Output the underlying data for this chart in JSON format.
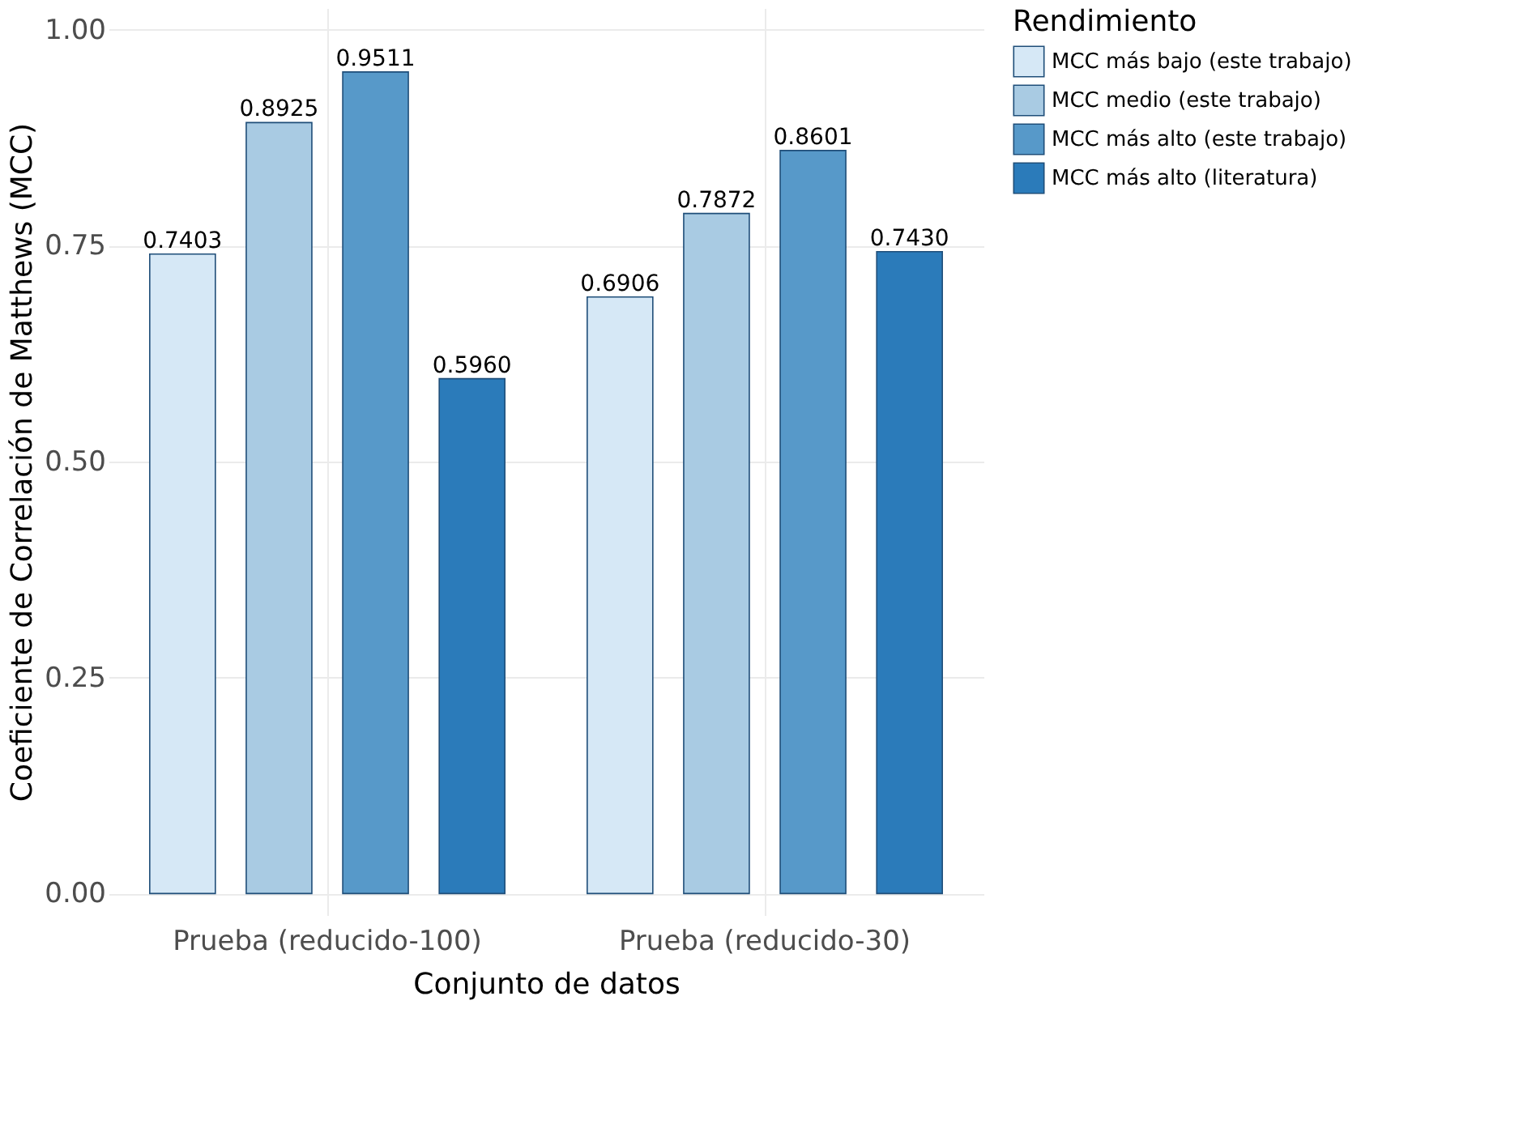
{
  "chart_data": {
    "type": "bar",
    "xlabel": "Conjunto de datos",
    "ylabel": "Coeficiente de Correlación de Matthews (MCC)",
    "legend_title": "Rendimiento",
    "categories": [
      "Prueba (reducido-100)",
      "Prueba (reducido-30)"
    ],
    "series": [
      {
        "name": "MCC más bajo (este trabajo)",
        "color": "#d6e8f6",
        "values": [
          0.7403,
          0.6906
        ],
        "value_labels": [
          "0.7403",
          "0.6906"
        ]
      },
      {
        "name": "MCC medio (este trabajo)",
        "color": "#a9cbe3",
        "values": [
          0.8925,
          0.7872
        ],
        "value_labels": [
          "0.8925",
          "0.7872"
        ]
      },
      {
        "name": "MCC más alto (este trabajo)",
        "color": "#5799c9",
        "values": [
          0.9511,
          0.8601
        ],
        "value_labels": [
          "0.9511",
          "0.8601"
        ]
      },
      {
        "name": "MCC más alto (literatura)",
        "color": "#2b7bba",
        "values": [
          0.596,
          0.743
        ],
        "value_labels": [
          "0.5960",
          "0.7430"
        ]
      }
    ],
    "ylim": [
      -0.025,
      1.025
    ],
    "yticks": [
      {
        "value": 0,
        "label": "0.00"
      },
      {
        "value": 0.25,
        "label": "0.25"
      },
      {
        "value": 0.5,
        "label": "0.50"
      },
      {
        "value": 0.75,
        "label": "0.75"
      },
      {
        "value": 1,
        "label": "1.00"
      }
    ],
    "grid": true,
    "legend": "right"
  }
}
